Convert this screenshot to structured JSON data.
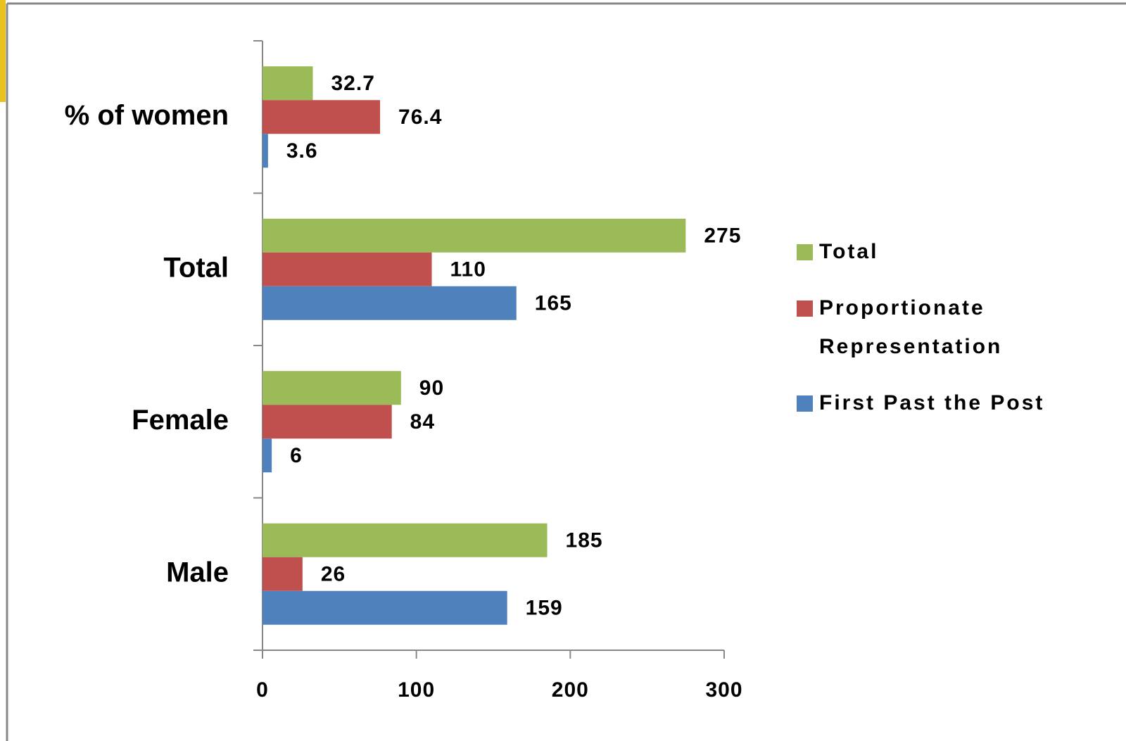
{
  "chart_data": {
    "type": "bar",
    "orientation": "horizontal",
    "categories": [
      "% of women",
      "Total",
      "Female",
      "Male"
    ],
    "series": [
      {
        "name": "Total",
        "color": "#9bbb59",
        "values": [
          32.7,
          275,
          90,
          185
        ]
      },
      {
        "name": "Proportionate Representation",
        "color": "#c0504d",
        "values": [
          76.4,
          110,
          84,
          26
        ]
      },
      {
        "name": "First Past the Post",
        "color": "#4f81bd",
        "values": [
          3.6,
          165,
          6,
          159
        ]
      }
    ],
    "xlim": [
      0,
      300
    ],
    "xticks": [
      0,
      100,
      200,
      300
    ],
    "grid": false,
    "legend": "right"
  }
}
